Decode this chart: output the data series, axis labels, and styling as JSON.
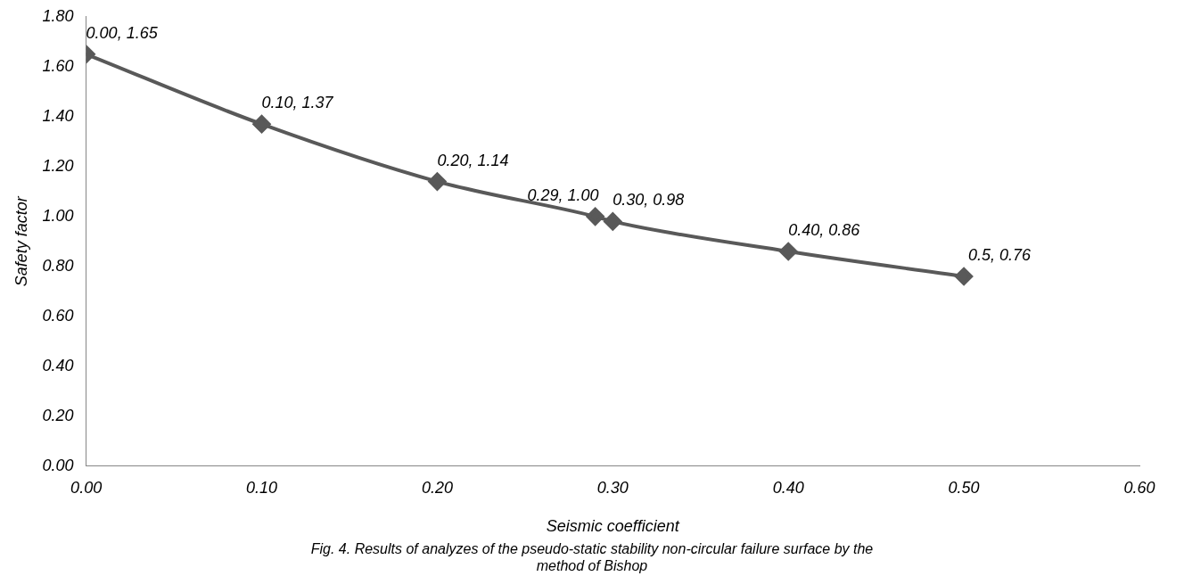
{
  "chart_data": {
    "type": "line",
    "xlabel": "Seismic coefficient",
    "ylabel": "Safety factor",
    "x": [
      0,
      0.1,
      0.2,
      0.29,
      0.3,
      0.4,
      0.5
    ],
    "series": [
      {
        "color": "#595959",
        "values": [
          1.65,
          1.37,
          1.14,
          1.0,
          0.98,
          0.86,
          0.76
        ],
        "value_labels": [
          "0.00, 1.65",
          "0.10, 1.37",
          "0.20, 1.14",
          "0.29, 1.00",
          "0.30, 0.98",
          "0.40, 0.86",
          "0.5, 0.76"
        ]
      }
    ],
    "xlim": [
      0,
      0.6
    ],
    "xticks": [
      {
        "value": 0,
        "label": "0.00"
      },
      {
        "value": 0.1,
        "label": "0.10"
      },
      {
        "value": 0.2,
        "label": "0.20"
      },
      {
        "value": 0.3,
        "label": "0.30"
      },
      {
        "value": 0.4,
        "label": "0.40"
      },
      {
        "value": 0.5,
        "label": "0.50"
      },
      {
        "value": 0.6,
        "label": "0.60"
      }
    ],
    "ylim": [
      0,
      1.8
    ],
    "yticks": [
      {
        "value": 0,
        "label": "0.00"
      },
      {
        "value": 0.2,
        "label": "0.20"
      },
      {
        "value": 0.4,
        "label": "0.40"
      },
      {
        "value": 0.6,
        "label": "0.60"
      },
      {
        "value": 0.8,
        "label": "0.80"
      },
      {
        "value": 1,
        "label": "1.00"
      },
      {
        "value": 1.2,
        "label": "1.20"
      },
      {
        "value": 1.4,
        "label": "1.40"
      },
      {
        "value": 1.6,
        "label": "1.60"
      },
      {
        "value": 1.8,
        "label": "1.80"
      }
    ],
    "marker": "diamond",
    "line_style": "solid",
    "grid": false,
    "legend": false,
    "annotations": [
      "Fig. 4. Results of analyzes of the pseudo-static stability non-circular failure surface by the method of Bishop"
    ]
  }
}
